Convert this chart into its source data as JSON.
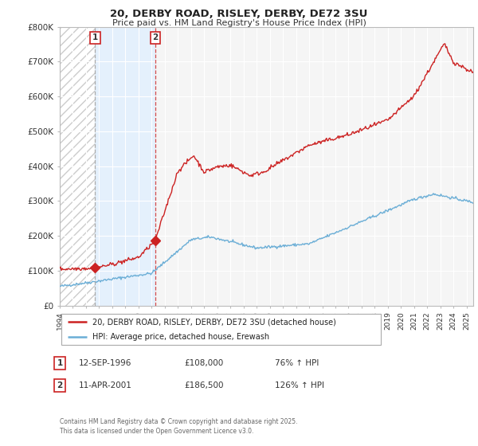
{
  "title_line1": "20, DERBY ROAD, RISLEY, DERBY, DE72 3SU",
  "title_line2": "Price paid vs. HM Land Registry's House Price Index (HPI)",
  "xlim_start": 1994.0,
  "xlim_end": 2025.5,
  "ylim": [
    0,
    800000
  ],
  "yticks": [
    0,
    100000,
    200000,
    300000,
    400000,
    500000,
    600000,
    700000,
    800000
  ],
  "ytick_labels": [
    "£0",
    "£100K",
    "£200K",
    "£300K",
    "£400K",
    "£500K",
    "£600K",
    "£700K",
    "£800K"
  ],
  "hpi_color": "#6baed6",
  "price_color": "#cc2222",
  "sale1_x": 1996.7,
  "sale1_y": 108000,
  "sale1_label": "1",
  "sale2_x": 2001.28,
  "sale2_y": 186500,
  "sale2_label": "2",
  "legend_price_label": "20, DERBY ROAD, RISLEY, DERBY, DE72 3SU (detached house)",
  "legend_hpi_label": "HPI: Average price, detached house, Erewash",
  "table_rows": [
    {
      "num": "1",
      "date": "12-SEP-1996",
      "price": "£108,000",
      "hpi": "76% ↑ HPI"
    },
    {
      "num": "2",
      "date": "11-APR-2001",
      "price": "£186,500",
      "hpi": "126% ↑ HPI"
    }
  ],
  "footer": "Contains HM Land Registry data © Crown copyright and database right 2025.\nThis data is licensed under the Open Government Licence v3.0.",
  "background_color": "#ffffff",
  "plot_bg_color": "#f5f5f5",
  "grid_color": "#ffffff"
}
